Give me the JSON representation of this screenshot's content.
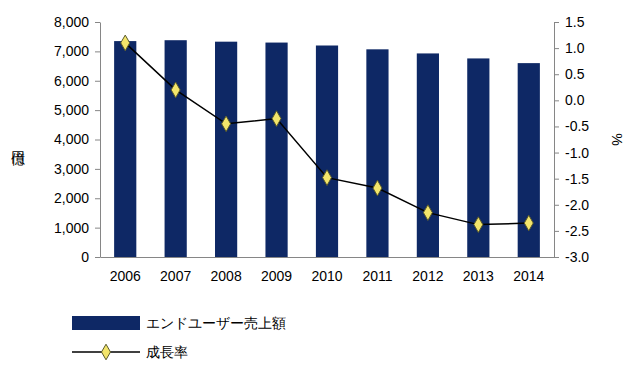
{
  "chart_data": {
    "type": "bar",
    "ylabel": "億円",
    "y2label": "%",
    "categories": [
      "2006",
      "2007",
      "2008",
      "2009",
      "2010",
      "2011",
      "2012",
      "2013",
      "2014"
    ],
    "series": [
      {
        "name": "エンドユーザー売上額",
        "type": "bar",
        "color": "#0e2865",
        "values": [
          7350,
          7380,
          7330,
          7300,
          7200,
          7070,
          6930,
          6760,
          6600
        ]
      },
      {
        "name": "成長率",
        "type": "line",
        "axis": "y2",
        "color": "#000000",
        "marker": "diamond",
        "line_style": "solid",
        "values": [
          1.1,
          0.2,
          -0.45,
          -0.35,
          -1.48,
          -1.68,
          -2.15,
          -2.38,
          -2.35
        ]
      }
    ],
    "ylim": [
      0,
      8000
    ],
    "yticks": [
      0,
      {
        "value": 1000,
        "label": "1,000"
      },
      {
        "value": 2000,
        "label": "2,000"
      },
      {
        "value": 3000,
        "label": "3,000"
      },
      {
        "value": 4000,
        "label": "4,000"
      },
      {
        "value": 5000,
        "label": "5,000"
      },
      {
        "value": 6000,
        "label": "6,000"
      },
      {
        "value": 7000,
        "label": "7,000"
      },
      {
        "value": 8000,
        "label": "8,000"
      }
    ],
    "y2lim": [
      -3,
      1.5
    ],
    "y2ticks": [
      {
        "value": -3,
        "label": "-3.0"
      },
      -2.5,
      {
        "value": -2,
        "label": "-2.0"
      },
      -1.5,
      {
        "value": -1,
        "label": "-1.0"
      },
      -0.5,
      {
        "value": 0,
        "label": "0.0"
      },
      0.5,
      {
        "value": 1,
        "label": "1.0"
      },
      1.5
    ],
    "grid": false,
    "legend": "bottom"
  }
}
